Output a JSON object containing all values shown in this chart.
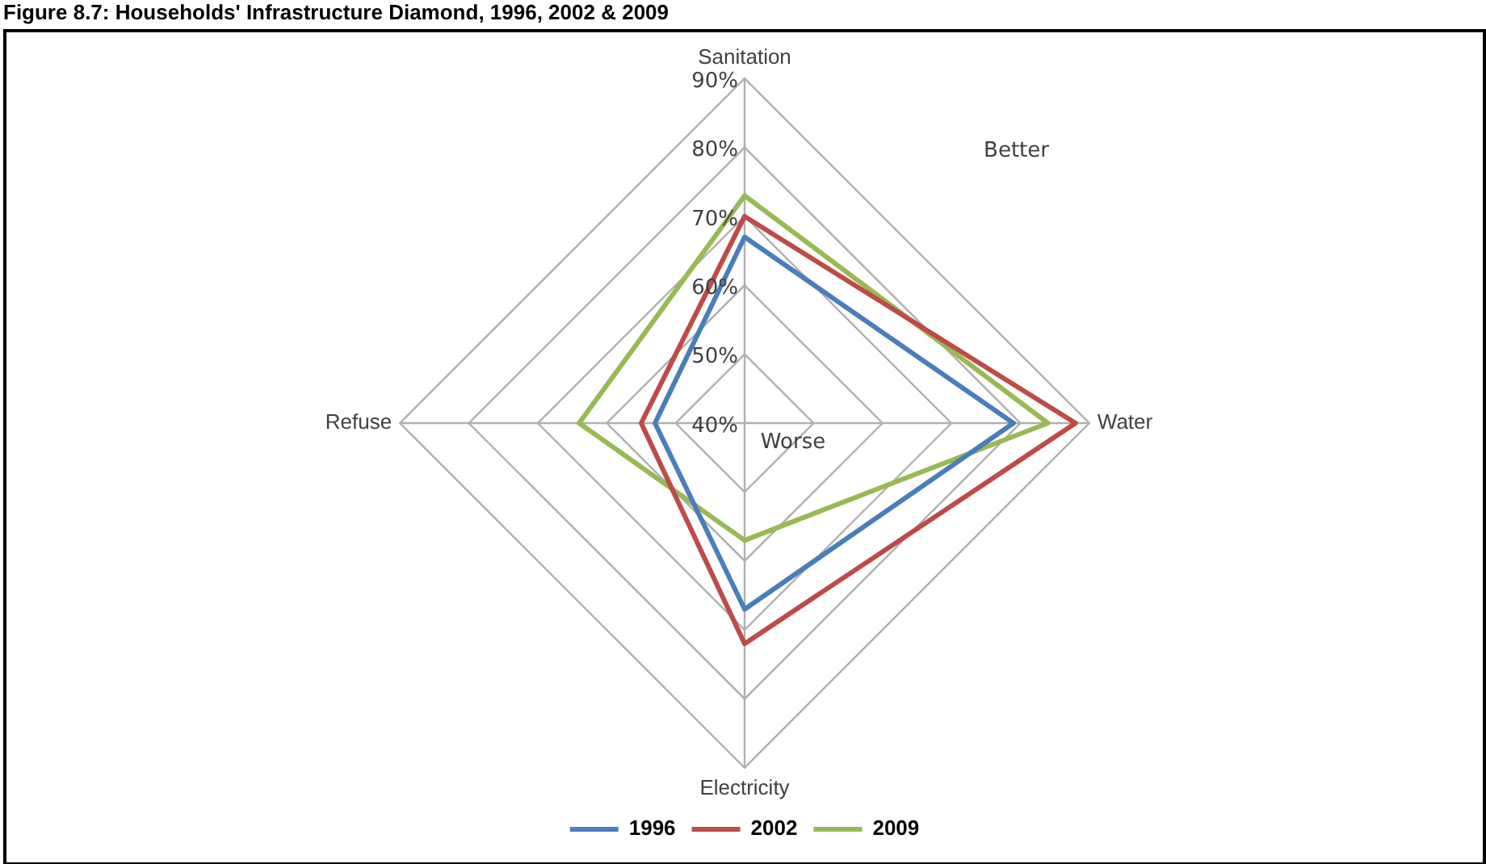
{
  "chart_data": {
    "type": "radar",
    "title": "Figure 8.7: Households' Infrastructure Diamond, 1996, 2002 & 2009",
    "categories": [
      "Sanitation",
      "Water",
      "Electricity",
      "Refuse"
    ],
    "series": [
      {
        "name": "1996",
        "color": "#4a7ebb",
        "values": [
          67,
          79,
          67,
          53
        ]
      },
      {
        "name": "2002",
        "color": "#be4b48",
        "values": [
          70,
          88,
          72,
          55
        ]
      },
      {
        "name": "2009",
        "color": "#98b954",
        "values": [
          73,
          84,
          57,
          64
        ]
      }
    ],
    "ylim": [
      40,
      90
    ],
    "yticks": [
      {
        "value": 40,
        "label": "40%"
      },
      {
        "value": 50,
        "label": "50%"
      },
      {
        "value": 60,
        "label": "60%"
      },
      {
        "value": 70,
        "label": "70%"
      },
      {
        "value": 80,
        "label": "80%"
      },
      {
        "value": 90,
        "label": "90%"
      }
    ],
    "annotations": [
      "Better",
      "Worse"
    ],
    "legend": "bottom",
    "marker": "none",
    "grid": true
  }
}
